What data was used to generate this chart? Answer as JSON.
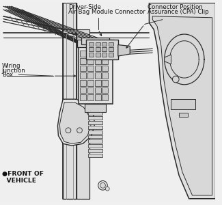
{
  "bg_color": "#f0f0f0",
  "line_color": "#2a2a2a",
  "labels": {
    "driver_side_line1": "Driver-Side",
    "driver_side_line2": "Air Bag Module Connector",
    "cpa_line1": "Connector Position",
    "cpa_line2": "Assurance (CPA) Clip",
    "wiring_line1": "Wiring",
    "wiring_line2": "Junction",
    "wiring_line3": "Box",
    "front_label": "●FRONT OF\n  VEHICLE"
  },
  "label_fontsize": 6.2,
  "figsize": [
    3.25,
    3.0
  ],
  "dpi": 100
}
